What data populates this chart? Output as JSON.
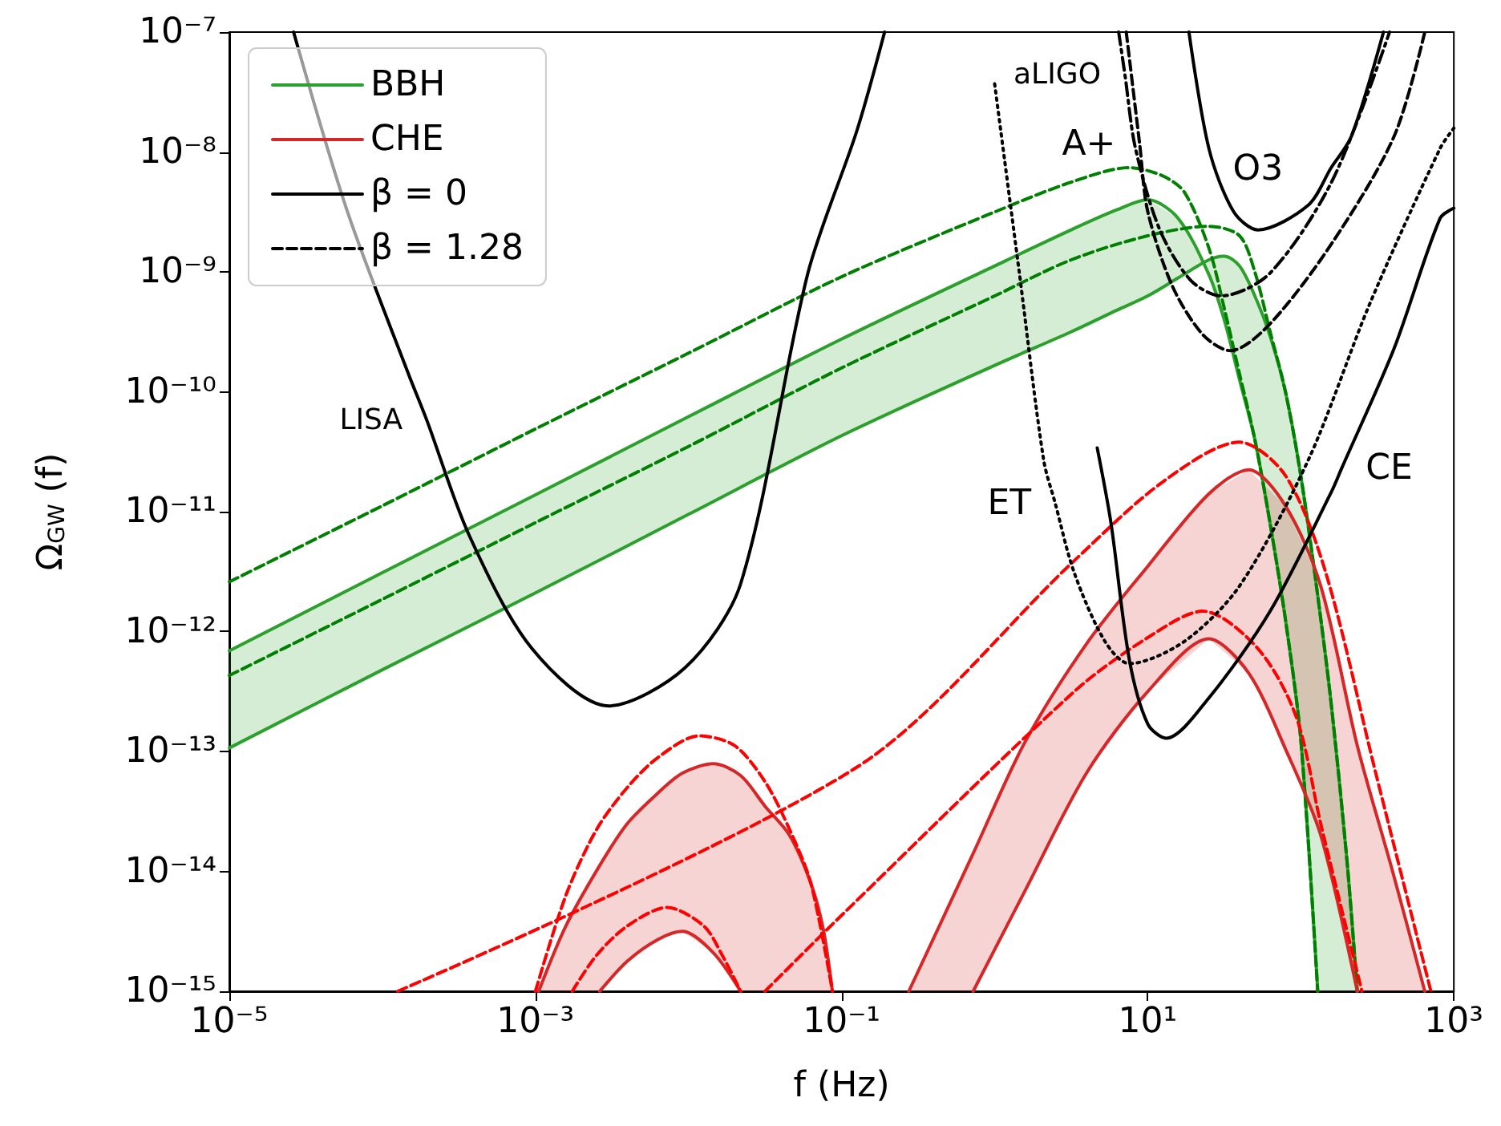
{
  "chart_data": {
    "type": "line",
    "xlabel": "f (Hz)",
    "ylabel": "Ω$_{GW}$ (f)",
    "log": "xy",
    "grid": false,
    "legend": "top left",
    "xlim": [
      1e-05,
      1000
    ],
    "ylim": [
      1e-15,
      1e-07
    ],
    "xticks": [
      {
        "value": 1e-05,
        "label": "10⁻⁵"
      },
      {
        "value": 0.001,
        "label": "10⁻³"
      },
      {
        "value": 0.1,
        "label": "10⁻¹"
      },
      {
        "value": 10,
        "label": "10¹"
      },
      {
        "value": 1000,
        "label": "10³"
      }
    ],
    "yticks": [
      {
        "value": 1e-15,
        "label": "10⁻¹⁵"
      },
      {
        "value": 1e-14,
        "label": "10⁻¹⁴"
      },
      {
        "value": 1e-13,
        "label": "10⁻¹³"
      },
      {
        "value": 1e-12,
        "label": "10⁻¹²"
      },
      {
        "value": 1e-11,
        "label": "10⁻¹¹"
      },
      {
        "value": 1e-10,
        "label": "10⁻¹⁰"
      },
      {
        "value": 1e-09,
        "label": "10⁻⁹"
      },
      {
        "value": 1e-08,
        "label": "10⁻⁸"
      },
      {
        "value": 1e-07,
        "label": "10⁻⁷"
      }
    ],
    "series": [
      {
        "name": "BBH",
        "color": "#2ca02c",
        "x": [
          1e-05,
          0.0001,
          0.001,
          0.01,
          0.1,
          1,
          3.16,
          6.31,
          10,
          15.8,
          25.1,
          31.6,
          39.8,
          50.1,
          63.1,
          79.4,
          100,
          129,
          158,
          200,
          234
        ],
        "values": [
          6.9e-13,
          3.1e-12,
          1.38e-11,
          6.2e-11,
          2.75e-10,
          1.12e-09,
          2.24e-09,
          3.3e-09,
          4e-09,
          2.8e-09,
          9.5e-10,
          4e-10,
          1.26e-10,
          4e-11,
          7.9e-12,
          1.26e-12,
          1.26e-13,
          1e-15,
          null,
          null,
          null
        ],
        "upper": [
          6.9e-13,
          3.1e-12,
          1.38e-11,
          6.2e-11,
          2.75e-10,
          1.12e-09,
          2.24e-09,
          3.3e-09,
          4e-09,
          2.8e-09,
          9.5e-10,
          4e-10,
          1.26e-10,
          4e-11,
          7.9e-12,
          1.26e-12,
          1.26e-13,
          1e-15,
          1e-15,
          1e-15,
          1e-15
        ],
        "lower": [
          1.07e-13,
          4.8e-13,
          2.1e-12,
          9.5e-12,
          4.3e-11,
          1.66e-10,
          3.16e-10,
          4.8e-10,
          6.3e-10,
          8.9e-10,
          1.26e-09,
          1.35e-09,
          1.12e-09,
          6.3e-10,
          2.9e-10,
          1e-10,
          2e-11,
          2e-12,
          2.5e-13,
          1.26e-14,
          1e-15
        ]
      },
      {
        "color": "#2ca02c",
        "x": [
          1e-05,
          0.0001,
          0.001,
          0.01,
          0.1,
          1,
          3.16,
          6.31,
          10,
          15.8,
          25.1,
          31.6,
          39.8,
          50.1,
          63.1,
          79.4,
          100,
          129,
          158,
          200,
          234
        ],
        "values": [
          1.07e-13,
          4.8e-13,
          2.1e-12,
          9.5e-12,
          4.3e-11,
          1.66e-10,
          3.16e-10,
          4.8e-10,
          6.3e-10,
          8.9e-10,
          1.26e-09,
          1.35e-09,
          1.12e-09,
          6.3e-10,
          2.9e-10,
          1e-10,
          2e-11,
          2e-12,
          2.5e-13,
          1.26e-14,
          1e-15
        ]
      },
      {
        "color": "#008000",
        "line_style": "dashed",
        "x": [
          1e-05,
          0.0001,
          0.001,
          0.01,
          0.1,
          1,
          3.16,
          7.59,
          12.6,
          17.4,
          25.1,
          31.6,
          39.8,
          50.1,
          63.1,
          79.4,
          100,
          129
        ],
        "values": [
          2.6e-12,
          1.12e-11,
          4.9e-11,
          2.1e-10,
          9.1e-10,
          3.16e-09,
          5.6e-09,
          7.4e-09,
          6.3e-09,
          4.6e-09,
          1.58e-09,
          5e-10,
          1.41e-10,
          4e-11,
          7.9e-12,
          1.26e-12,
          1.26e-13,
          1e-15
        ]
      },
      {
        "color": "#008000",
        "line_style": "dashed",
        "x": [
          1e-05,
          0.0001,
          0.001,
          0.01,
          0.1,
          1,
          3.16,
          10,
          25.1,
          39.8,
          50.1,
          63.1,
          79.4,
          100,
          129,
          158,
          200,
          234
        ],
        "values": [
          4.3e-13,
          1.86e-12,
          8.1e-12,
          3.5e-11,
          1.58e-10,
          6.3e-10,
          1.26e-09,
          2e-09,
          2.4e-09,
          2e-09,
          1e-09,
          3.16e-10,
          1e-10,
          2e-11,
          2e-12,
          2.5e-13,
          1.26e-14,
          1e-15
        ]
      },
      {
        "name": "CHE",
        "color": "#d62728",
        "x": [
          0.00105,
          0.00158,
          0.00263,
          0.00398,
          0.00631,
          0.00912,
          0.0145,
          0.0219,
          0.0316,
          0.0457,
          0.0631,
          0.0759,
          0.0871
        ],
        "values": [
          1e-15,
          3.5e-15,
          1.12e-14,
          2.5e-14,
          4.5e-14,
          6.6e-14,
          7.9e-14,
          6.3e-14,
          3.5e-14,
          2e-14,
          7.9e-15,
          3.3e-15,
          1e-15
        ],
        "upper": [
          1e-15,
          3.5e-15,
          1.12e-14,
          2.5e-14,
          4.5e-14,
          6.6e-14,
          7.9e-14,
          6.3e-14,
          3.5e-14,
          2e-14,
          7.9e-15,
          3.3e-15,
          1e-15
        ],
        "lower": [
          1e-15,
          1e-15,
          1e-15,
          1.78e-15,
          2.7e-15,
          3.16e-15,
          2.1e-15,
          1e-15,
          1e-15,
          1e-15,
          1e-15,
          1e-15,
          1e-15
        ]
      },
      {
        "color": "#d62728",
        "x": [
          0.00263,
          0.00398,
          0.00631,
          0.00912,
          0.0145,
          0.0219
        ],
        "values": [
          1e-15,
          1.78e-15,
          2.7e-15,
          3.16e-15,
          2.1e-15,
          1e-15
        ]
      },
      {
        "color": "#ff0000",
        "line_style": "dashed",
        "x": [
          0.001,
          0.00158,
          0.00251,
          0.00398,
          0.00631,
          0.0117,
          0.02,
          0.0316,
          0.0457,
          0.0631,
          0.0871
        ],
        "values": [
          1e-15,
          6.3e-15,
          2.24e-14,
          5e-14,
          8.9e-14,
          1.35e-13,
          1.12e-13,
          5.6e-14,
          2.24e-14,
          7.9e-15,
          1e-15
        ]
      },
      {
        "color": "#ff0000",
        "line_style": "dashed",
        "x": [
          0.00174,
          0.00251,
          0.00398,
          0.00724,
          0.0126,
          0.0166,
          0.0219
        ],
        "values": [
          1e-15,
          2e-15,
          3.5e-15,
          5e-15,
          3.5e-15,
          2e-15,
          1e-15
        ]
      },
      {
        "color": "#d62728",
        "x": [
          0.275,
          0.724,
          1.58,
          3.98,
          10,
          25.1,
          45.7,
          79.4,
          135,
          234,
          398,
          646
        ],
        "values": [
          1e-15,
          1.41e-14,
          1.2e-13,
          7.9e-13,
          3.5e-12,
          1.41e-11,
          2.24e-11,
          1.12e-11,
          2.4e-12,
          1.12e-13,
          1e-14,
          1e-15
        ],
        "upper": [
          1e-15,
          1.41e-14,
          1.2e-13,
          7.9e-13,
          3.5e-12,
          1.41e-11,
          2.24e-11,
          1.12e-11,
          2.4e-12,
          1.12e-13,
          1e-14,
          1e-15
        ],
        "lower": [
          1e-15,
          1e-15,
          6.9e-15,
          6.6e-14,
          3.16e-13,
          8.7e-13,
          4.5e-13,
          1.05e-13,
          2e-14,
          1e-15,
          1e-15,
          1e-15
        ]
      },
      {
        "color": "#d62728",
        "x": [
          0.724,
          1.58,
          3.98,
          10,
          25.1,
          45.7,
          79.4,
          135,
          234
        ],
        "values": [
          1e-15,
          6.9e-15,
          6.6e-14,
          3.16e-13,
          8.7e-13,
          4.5e-13,
          1.05e-13,
          2e-14,
          1e-15
        ]
      },
      {
        "color": "#ff0000",
        "line_style": "dashed",
        "x": [
          0.000126,
          0.126,
          3.31,
          12.6,
          39.8,
          79.4,
          145,
          309,
          708
        ],
        "values": [
          1e-15,
          7.4e-14,
          3.9e-12,
          1.78e-11,
          3.8e-11,
          2e-11,
          3.16e-12,
          6.6e-14,
          1e-15
        ]
      },
      {
        "color": "#ff0000",
        "line_style": "dashed",
        "x": [
          0.0316,
          0.1,
          3.31,
          10,
          22.9,
          52.5,
          93.3,
          135,
          251
        ],
        "values": [
          1e-15,
          4.3e-15,
          3.16e-13,
          8.9e-13,
          1.48e-12,
          7.2e-13,
          1.95e-13,
          2.5e-14,
          1e-15
        ]
      },
      {
        "color": "#000000",
        "line_style": "solid",
        "x": [
          2.63e-05,
          5.9e-05,
          0.000148,
          0.000195,
          0.00037,
          0.00095,
          0.003,
          0.0095,
          0.0219,
          0.0603,
          0.126,
          0.191
        ],
        "values": [
          1e-07,
          3.2e-09,
          1.41e-10,
          5.8e-11,
          6.3e-12,
          7.2e-13,
          2.4e-13,
          5e-13,
          2.5e-12,
          9.8e-10,
          1.51e-08,
          1e-07
        ]
      },
      {
        "color": "#000000",
        "line_style": "dotted",
        "x": [
          1.0,
          1.45,
          2.09,
          2.49,
          3.31,
          5.25,
          7.59,
          17.4,
          39.8,
          112,
          282,
          813,
          1000
        ],
        "values": [
          3.7e-08,
          9.8e-10,
          2.7e-11,
          1.17e-11,
          3.1e-12,
          8.3e-13,
          5.4e-13,
          8.3e-13,
          2.4e-12,
          2.7e-11,
          5.4e-10,
          1.07e-08,
          1.58e-08
        ]
      },
      {
        "color": "#000000",
        "line_style": "solid",
        "x": [
          4.68,
          5.75,
          7.59,
          10,
          13.2,
          25.1,
          63.1,
          158,
          185,
          407,
          813,
          1000
        ],
        "values": [
          3.4e-11,
          8.1e-12,
          5.8e-13,
          1.7e-13,
          1.29e-13,
          2.8e-13,
          1.48e-12,
          1.45e-11,
          2.3e-11,
          2.3e-10,
          2.8e-09,
          3.4e-09
        ]
      },
      {
        "color": "#000000",
        "line_style": "solid",
        "x": [
          18.6,
          25.1,
          36.3,
          52.5,
          112,
          158,
          214,
          347
        ],
        "values": [
          1e-07,
          1.07e-08,
          3.2e-09,
          2.24e-09,
          3.6e-09,
          7.4e-09,
          1.35e-08,
          1e-07
        ]
      },
      {
        "color": "#000000",
        "line_style": "dashed",
        "x": [
          7.24,
          8.87,
          10,
          14.5,
          22.9,
          34.7,
          63.1,
          162,
          407,
          646
        ],
        "values": [
          1e-07,
          1.15e-08,
          3.2e-09,
          7.6e-10,
          3e-10,
          2.2e-10,
          3.7e-10,
          1.78e-09,
          1.35e-08,
          1e-07
        ]
      },
      {
        "color": "#000000",
        "line_style": "dashdot",
        "x": [
          6.46,
          7.1,
          8.32,
          12.0,
          19.1,
          30.2,
          63.1,
          162,
          380
        ],
        "values": [
          1e-07,
          4.4e-08,
          1.07e-08,
          2.24e-09,
          8.5e-10,
          6.3e-10,
          9.8e-10,
          5.9e-09,
          1e-07
        ]
      },
      {
        "name": "β = 0",
        "color": "#000000",
        "line_style": "solid"
      },
      {
        "name": "β = 1.28",
        "color": "#000000",
        "line_style": "dashed"
      }
    ],
    "annotations": [
      {
        "text": "LISA",
        "x": 0.000195,
        "y": 5.8e-11
      },
      {
        "text": "ET",
        "x": 2.49,
        "y": 1.17e-11
      },
      {
        "text": "aLIGO",
        "x": 7.1,
        "y": 4.4e-08
      },
      {
        "text": "A+",
        "x": 8.87,
        "y": 1.15e-08
      },
      {
        "text": "O3",
        "x": 52.5,
        "y": 2.24e-09
      },
      {
        "text": "CE",
        "x": 185,
        "y": 2.3e-11
      }
    ]
  }
}
